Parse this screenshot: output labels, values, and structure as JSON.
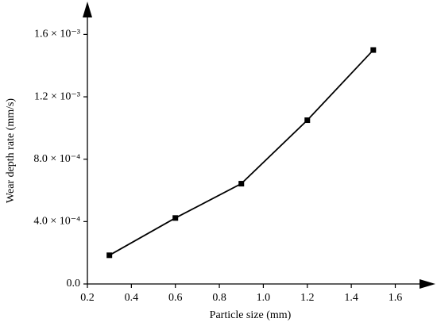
{
  "chart_data": {
    "type": "line",
    "x_label": "Particle size (mm)",
    "y_label": "Wear depth rate (mm/s)",
    "x": [
      0.3,
      0.6,
      0.9,
      1.2,
      1.5
    ],
    "series": [
      {
        "color": "#000000",
        "values": [
          0.000184,
          0.000423,
          0.000643,
          0.00105,
          0.0015
        ]
      }
    ],
    "xlim": [
      0.2,
      1.75
    ],
    "xticks": [
      0.2,
      0.4,
      0.6,
      0.8,
      {
        "value": 1.0,
        "label": "1.0"
      },
      1.2,
      1.4,
      1.6
    ],
    "ylim": [
      0,
      0.00178
    ],
    "yticks": [
      {
        "value": 0,
        "label": "0.0"
      },
      {
        "value": 0.0004,
        "label": "4.0 × 10⁻⁴"
      },
      {
        "value": 0.0008,
        "label": "8.0 × 10⁻⁴"
      },
      {
        "value": 0.0012,
        "label": "1.2 × 10⁻³"
      },
      {
        "value": 0.0016,
        "label": "1.6 × 10⁻³"
      }
    ],
    "grid": false
  }
}
